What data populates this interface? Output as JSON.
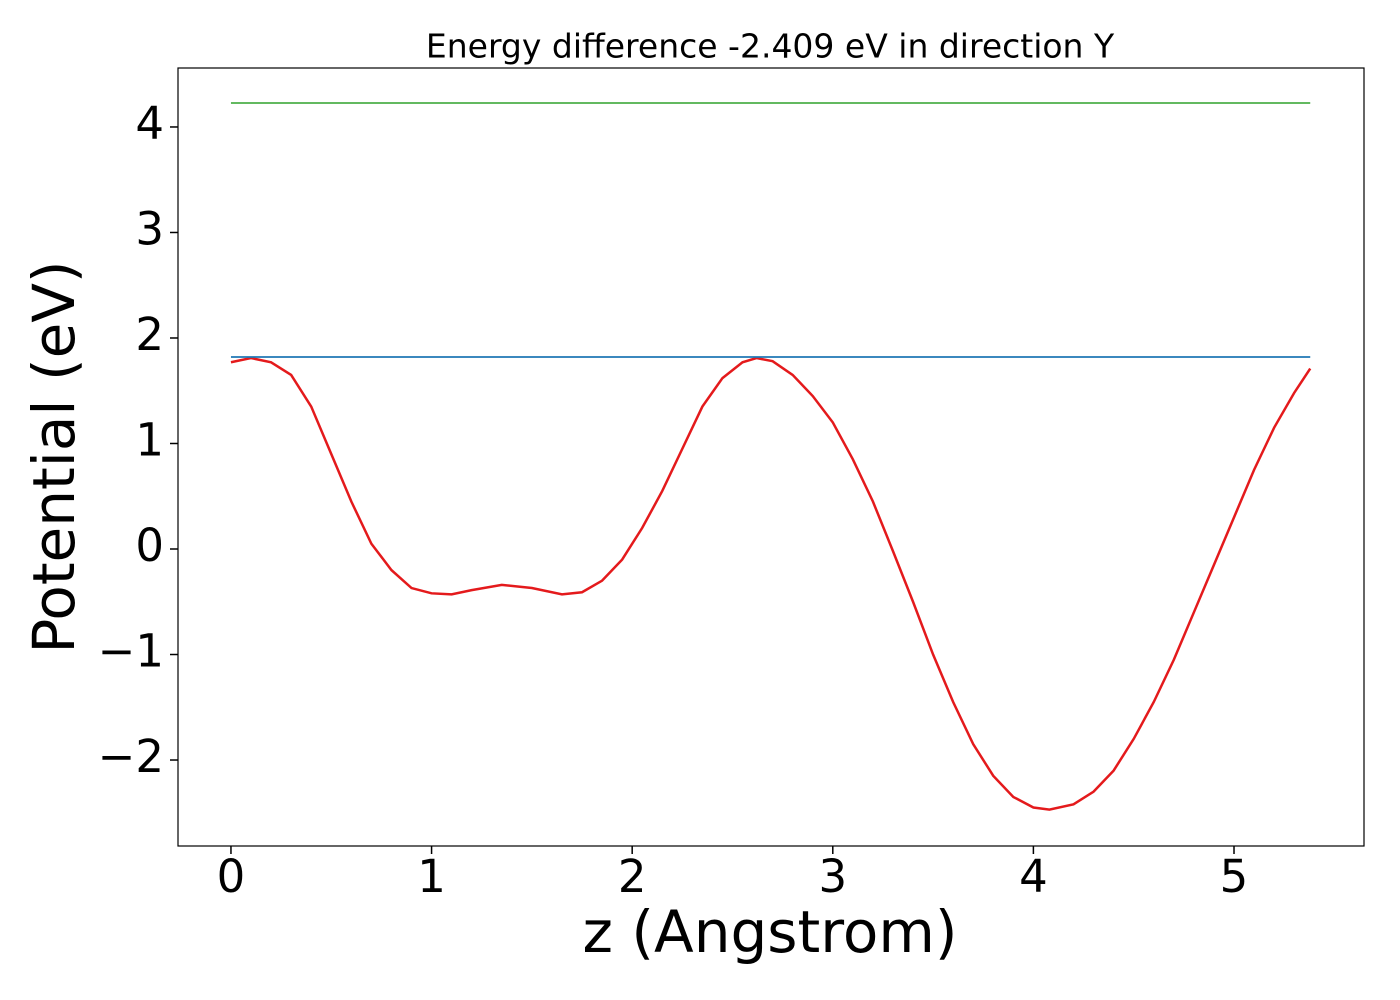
{
  "chart_data": {
    "type": "line",
    "title": "Energy difference -2.409 eV in direction Y",
    "xlabel": "z (Angstrom)",
    "ylabel": "Potential (eV)",
    "xlim": [
      -0.264,
      5.648
    ],
    "ylim": [
      -2.815,
      4.559
    ],
    "xticks": [
      0,
      1,
      2,
      3,
      4,
      5
    ],
    "yticks": [
      {
        "value": -2,
        "label": "−2"
      },
      {
        "value": -1,
        "label": "−1"
      },
      0,
      1,
      2,
      3,
      4
    ],
    "grid": false,
    "series": [
      {
        "color": "#e41a1c",
        "x": [
          0,
          0.1,
          0.2,
          0.3,
          0.4,
          0.5,
          0.6,
          0.7,
          0.8,
          0.9,
          1.0,
          1.1,
          1.2,
          1.35,
          1.5,
          1.65,
          1.75,
          1.85,
          1.95,
          2.05,
          2.15,
          2.25,
          2.35,
          2.45,
          2.55,
          2.62,
          2.7,
          2.8,
          2.9,
          3.0,
          3.1,
          3.2,
          3.3,
          3.4,
          3.5,
          3.6,
          3.7,
          3.8,
          3.9,
          4.0,
          4.08,
          4.2,
          4.3,
          4.4,
          4.5,
          4.6,
          4.7,
          4.8,
          4.9,
          5.0,
          5.1,
          5.2,
          5.3,
          5.38
        ],
        "values": [
          1.77,
          1.81,
          1.77,
          1.65,
          1.35,
          0.9,
          0.45,
          0.05,
          -0.2,
          -0.37,
          -0.42,
          -0.43,
          -0.39,
          -0.34,
          -0.37,
          -0.43,
          -0.41,
          -0.3,
          -0.1,
          0.2,
          0.55,
          0.95,
          1.35,
          1.62,
          1.77,
          1.81,
          1.78,
          1.65,
          1.45,
          1.2,
          0.85,
          0.45,
          -0.02,
          -0.5,
          -1.0,
          -1.45,
          -1.85,
          -2.15,
          -2.35,
          -2.45,
          -2.47,
          -2.42,
          -2.3,
          -2.1,
          -1.8,
          -1.45,
          -1.05,
          -0.6,
          -0.15,
          0.3,
          0.75,
          1.15,
          1.48,
          1.71
        ]
      },
      {
        "color": "#1f77b4",
        "x": [
          0,
          5.38
        ],
        "values": [
          1.82,
          1.82
        ]
      },
      {
        "color": "#4daf4a",
        "x": [
          0,
          5.38
        ],
        "values": [
          4.227,
          4.227
        ]
      }
    ]
  }
}
